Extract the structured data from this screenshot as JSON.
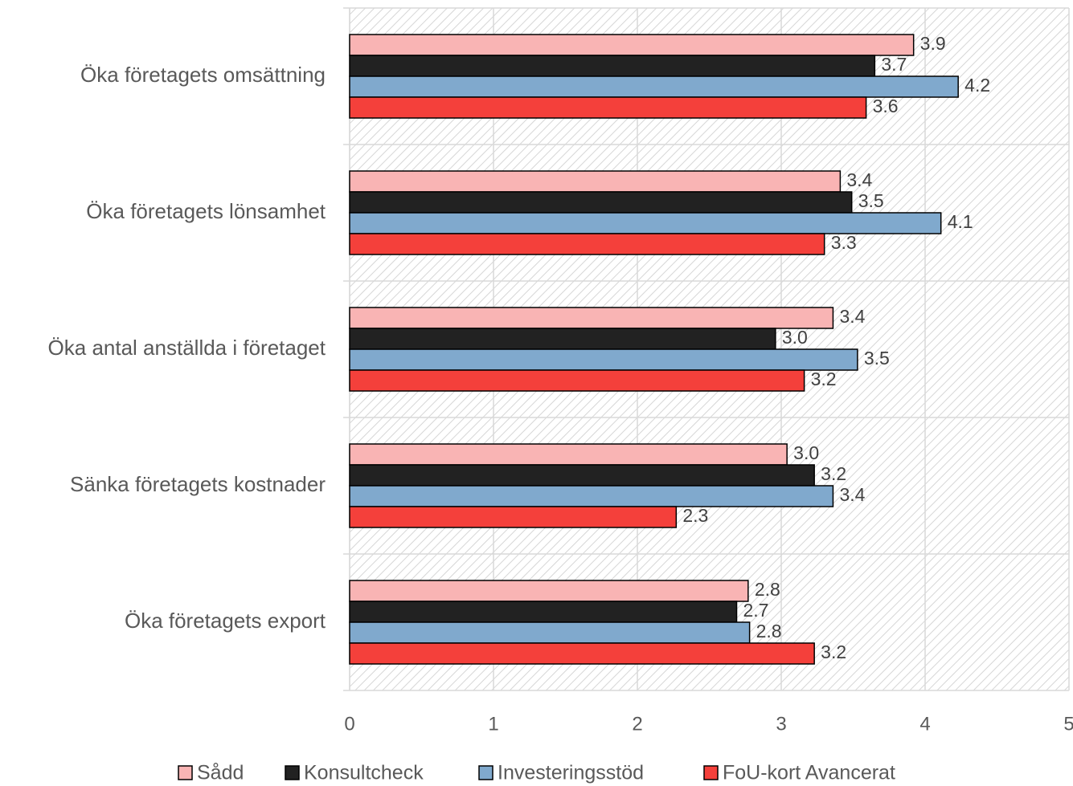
{
  "chart_data": {
    "type": "bar",
    "orientation": "horizontal",
    "categories": [
      "Öka företagets omsättning",
      "Öka företagets lönsamhet",
      "Öka antal anställda i företaget",
      "Sänka företagets kostnader",
      "Öka företagets export"
    ],
    "series": [
      {
        "name": "Sådd",
        "color": "#f9b4b4",
        "values": [
          3.92,
          3.41,
          3.36,
          3.04,
          2.77
        ],
        "value_labels": [
          "3.9",
          "3.4",
          "3.4",
          "3.0",
          "2.8"
        ]
      },
      {
        "name": "Konsultcheck",
        "color": "#222222",
        "values": [
          3.65,
          3.49,
          2.96,
          3.23,
          2.69
        ],
        "value_labels": [
          "3.7",
          "3.5",
          "3.0",
          "3.2",
          "2.7"
        ]
      },
      {
        "name": "Investeringsstöd",
        "color": "#80a9cd",
        "values": [
          4.23,
          4.11,
          3.53,
          3.36,
          2.78
        ],
        "value_labels": [
          "4.2",
          "4.1",
          "3.5",
          "3.4",
          "2.8"
        ]
      },
      {
        "name": "FoU-kort Avancerat",
        "color": "#f4403b",
        "values": [
          3.59,
          3.3,
          3.16,
          2.27,
          3.23
        ],
        "value_labels": [
          "3.6",
          "3.3",
          "3.2",
          "2.3",
          "3.2"
        ]
      }
    ],
    "xlim": [
      0,
      5
    ],
    "xticks": [
      0,
      1,
      2,
      3,
      4,
      5
    ],
    "grid": true,
    "legend": "bottom"
  }
}
